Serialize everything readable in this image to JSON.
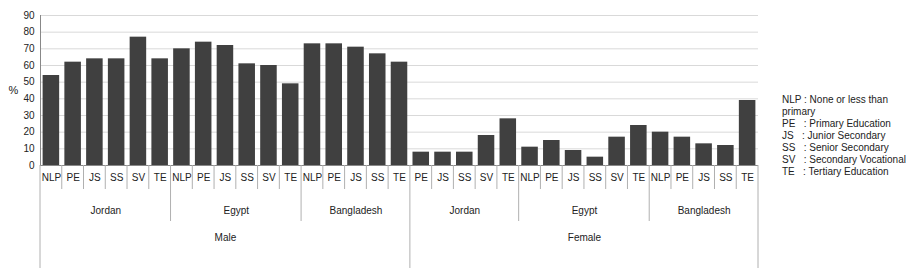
{
  "chart_data": {
    "type": "bar",
    "y_label": "%",
    "categories": [
      "NLP",
      "PE",
      "JS",
      "SS",
      "SV",
      "TE",
      "NLP",
      "PE",
      "JS",
      "SS",
      "SV",
      "TE",
      "NLP",
      "PE",
      "JS",
      "SS",
      "TE",
      "PE",
      "JS",
      "SS",
      "SV",
      "TE",
      "NLP",
      "PE",
      "JS",
      "SS",
      "SV",
      "TE",
      "NLP",
      "PE",
      "JS",
      "SS",
      "TE"
    ],
    "country": [
      "Jordan",
      "Jordan",
      "Jordan",
      "Jordan",
      "Jordan",
      "Jordan",
      "Egypt",
      "Egypt",
      "Egypt",
      "Egypt",
      "Egypt",
      "Egypt",
      "Bangladesh",
      "Bangladesh",
      "Bangladesh",
      "Bangladesh",
      "Bangladesh",
      "Jordan",
      "Jordan",
      "Jordan",
      "Jordan",
      "Jordan",
      "Egypt",
      "Egypt",
      "Egypt",
      "Egypt",
      "Egypt",
      "Egypt",
      "Bangladesh",
      "Bangladesh",
      "Bangladesh",
      "Bangladesh",
      "Bangladesh"
    ],
    "sex": [
      "Male",
      "Male",
      "Male",
      "Male",
      "Male",
      "Male",
      "Male",
      "Male",
      "Male",
      "Male",
      "Male",
      "Male",
      "Male",
      "Male",
      "Male",
      "Male",
      "Male",
      "Female",
      "Female",
      "Female",
      "Female",
      "Female",
      "Female",
      "Female",
      "Female",
      "Female",
      "Female",
      "Female",
      "Female",
      "Female",
      "Female",
      "Female",
      "Female"
    ],
    "values": [
      54,
      62,
      64,
      64,
      77,
      64,
      70,
      74,
      72,
      61,
      60,
      49,
      73,
      73,
      71,
      67,
      62,
      8,
      8,
      8,
      18,
      28,
      11,
      15,
      9,
      5,
      17,
      24,
      20,
      17,
      13,
      12,
      39
    ],
    "color": "#404040",
    "ylim": [
      0,
      90
    ],
    "yticks": [
      0,
      10,
      20,
      30,
      40,
      50,
      60,
      70,
      80,
      90
    ],
    "grid": true,
    "legend": "right",
    "legend_text": [
      "NLP : None or less than primary",
      "PE   : Primary Education",
      "JS   : Junior Secondary",
      "SS   : Senior Secondary",
      "SV   : Secondary Vocational",
      "TE   : Tertiary Education"
    ]
  }
}
